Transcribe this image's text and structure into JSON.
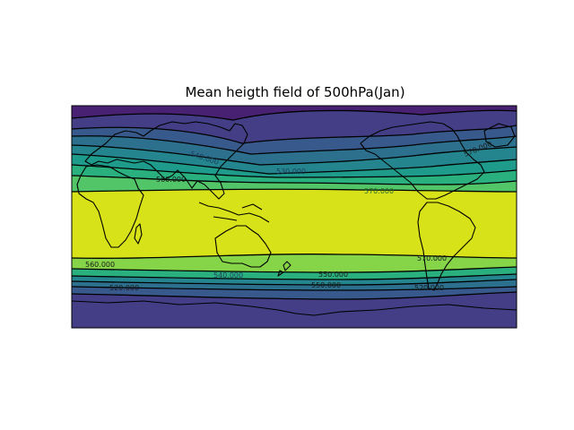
{
  "title": "Mean heigth field of 500hPa(Jan)",
  "colors": {
    "band_north_far": "#482173",
    "band_north_2": "#433e85",
    "band_north_3": "#38598c",
    "band_north_4": "#2d708e",
    "band_north_5": "#25858e",
    "band_north_6": "#1e9b8a",
    "band_north_7": "#2ab07f",
    "band_north_8": "#52c569",
    "band_tropics": "#d8e219",
    "band_south_1": "#86d549",
    "band_south_2": "#2ab07f",
    "band_south_3": "#25858e",
    "band_south_4": "#2d708e",
    "band_south_5": "#38598c",
    "band_south_far": "#433e85",
    "coastline": "#000000",
    "contour": "#000000"
  },
  "contour_labels": [
    {
      "text": "570.000",
      "color": "#1a1a1a"
    },
    {
      "text": "570.000",
      "color": "#2b6f2b"
    },
    {
      "text": "540.000",
      "color": "#1a3d5c"
    },
    {
      "text": "530.000",
      "color": "#1a3d5c"
    },
    {
      "text": "560.000",
      "color": "#1a1a1a"
    },
    {
      "text": "570.000",
      "color": "#1a1a1a"
    },
    {
      "text": "560.000",
      "color": "#1a1a1a"
    },
    {
      "text": "540.000",
      "color": "#1a3d5c"
    },
    {
      "text": "550.000",
      "color": "#1a1a1a"
    },
    {
      "text": "550.000",
      "color": "#1a1a1a"
    },
    {
      "text": "520.000",
      "color": "#1a1a1a"
    },
    {
      "text": "520.000",
      "color": "#1a1a1a"
    }
  ]
}
